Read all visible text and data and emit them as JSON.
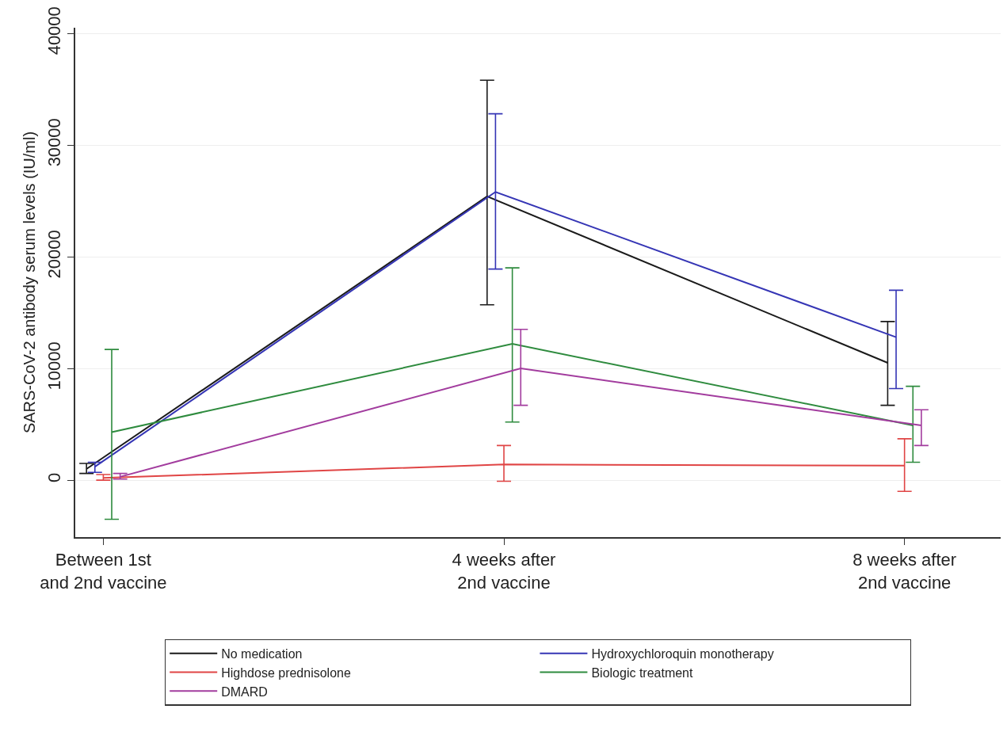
{
  "chart_data": {
    "type": "line",
    "ylabel": "SARS-CoV-2 antibody serum levels (IU/ml)",
    "categories": [
      "Between 1st\nand 2nd vaccine",
      "4 weeks after\n2nd vaccine",
      "8 weeks after\n2nd vaccine"
    ],
    "ylim": [
      -5100,
      40500
    ],
    "yticks": [
      0,
      10000,
      20000,
      30000,
      40000
    ],
    "grid": "y",
    "legend": "bottom",
    "marker": "none",
    "line_style": "solid",
    "series": [
      {
        "name": "No medication",
        "color": "#1a1a1a",
        "values": [
          1000,
          25400,
          10500
        ],
        "errors": [
          [
            600,
            1500
          ],
          [
            15700,
            35800
          ],
          [
            6700,
            14200
          ]
        ]
      },
      {
        "name": "Hydroxychloroquin monotherapy",
        "color": "#3535b5",
        "values": [
          1200,
          25800,
          12800
        ],
        "errors": [
          [
            700,
            1600
          ],
          [
            18900,
            32800
          ],
          [
            8200,
            17000
          ]
        ]
      },
      {
        "name": "Highdose prednisolone",
        "color": "#e04545",
        "values": [
          200,
          1400,
          1300
        ],
        "errors": [
          [
            0,
            500
          ],
          [
            -100,
            3100
          ],
          [
            -1000,
            3700
          ]
        ]
      },
      {
        "name": "Biologic treatment",
        "color": "#2e8b3e",
        "values": [
          4300,
          12200,
          4900
        ],
        "errors": [
          [
            -3500,
            11700
          ],
          [
            5200,
            19000
          ],
          [
            1600,
            8400
          ]
        ]
      },
      {
        "name": "DMARD",
        "color": "#a23c9e",
        "values": [
          300,
          10000,
          4900
        ],
        "errors": [
          [
            100,
            600
          ],
          [
            6700,
            13500
          ],
          [
            3100,
            6300
          ]
        ]
      }
    ]
  }
}
